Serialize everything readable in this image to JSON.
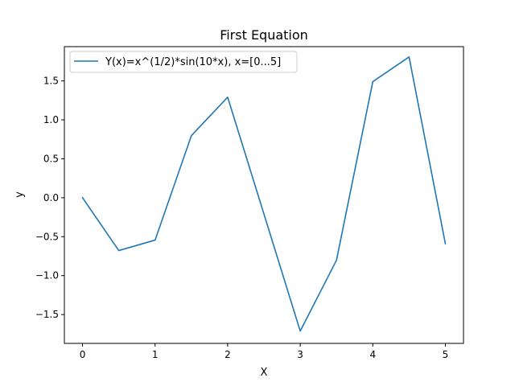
{
  "chart_data": {
    "type": "line",
    "title": "First Equation",
    "xlabel": "X",
    "ylabel": "y",
    "xlim": [
      -0.25,
      5.25
    ],
    "ylim": [
      -1.87,
      1.94
    ],
    "xticks": [
      0,
      1,
      2,
      3,
      4,
      5
    ],
    "xtick_labels": [
      "0",
      "1",
      "2",
      "3",
      "4",
      "5"
    ],
    "yticks": [
      -1.5,
      -1.0,
      -0.5,
      0.0,
      0.5,
      1.0,
      1.5
    ],
    "ytick_labels": [
      "−1.5",
      "−1.0",
      "−0.5",
      "0.0",
      "0.5",
      "1.0",
      "1.5"
    ],
    "grid": false,
    "legend_position": "top-left",
    "series": [
      {
        "name": "Y(x)=x^(1/2)*sin(10*x), x=[0...5]",
        "color": "#1f77b4",
        "x": [
          0,
          0.5,
          1.0,
          1.5,
          2.0,
          2.5,
          3.0,
          3.5,
          4.0,
          4.5,
          5.0
        ],
        "y": [
          0.0,
          -0.678,
          -0.544,
          0.797,
          1.291,
          -0.209,
          -1.712,
          -0.802,
          1.49,
          1.808,
          -0.59
        ]
      }
    ]
  }
}
